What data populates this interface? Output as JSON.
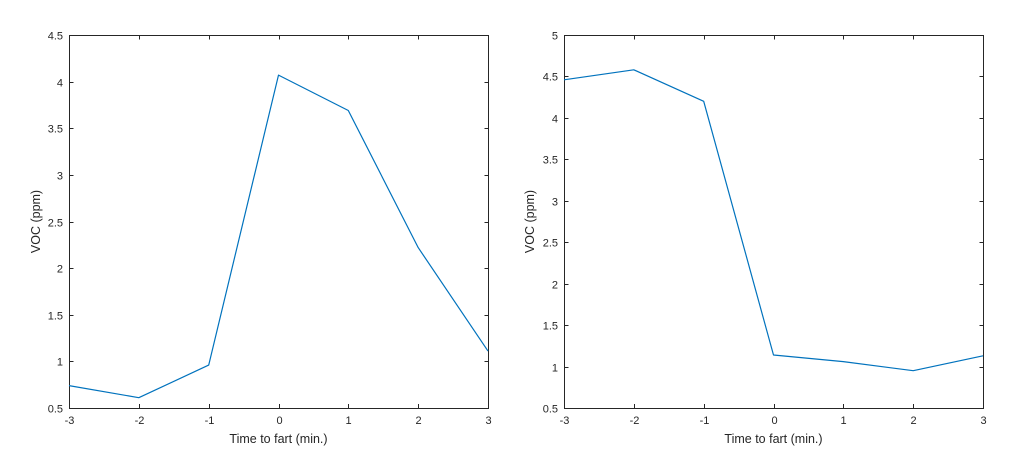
{
  "chart_data": [
    {
      "type": "line",
      "title": "",
      "xlabel": "Time to fart (min.)",
      "ylabel": "VOC (ppm)",
      "xlim": [
        -3,
        3
      ],
      "ylim": [
        0.5,
        4.5
      ],
      "xticks": [
        -3,
        -2,
        -1,
        0,
        1,
        2,
        3
      ],
      "yticks": [
        0.5,
        1,
        1.5,
        2,
        2.5,
        3,
        3.5,
        4,
        4.5
      ],
      "xtick_labels": [
        "-3",
        "-2",
        "-1",
        "0",
        "1",
        "2",
        "3"
      ],
      "ytick_labels": [
        "0.5",
        "1",
        "1.5",
        "2",
        "2.5",
        "3",
        "3.5",
        "4",
        "4.5"
      ],
      "grid": false,
      "color": "#0072BD",
      "x": [
        -3,
        -2,
        -1,
        0,
        1,
        2,
        3
      ],
      "y": [
        0.74,
        0.61,
        0.96,
        4.07,
        3.69,
        2.22,
        1.11
      ]
    },
    {
      "type": "line",
      "title": "",
      "xlabel": "Time to fart (min.)",
      "ylabel": "VOC (ppm)",
      "xlim": [
        -3,
        3
      ],
      "ylim": [
        0.5,
        5
      ],
      "xticks": [
        -3,
        -2,
        -1,
        0,
        1,
        2,
        3
      ],
      "yticks": [
        0.5,
        1,
        1.5,
        2,
        2.5,
        3,
        3.5,
        4,
        4.5,
        5
      ],
      "xtick_labels": [
        "-3",
        "-2",
        "-1",
        "0",
        "1",
        "2",
        "3"
      ],
      "ytick_labels": [
        "0.5",
        "1",
        "1.5",
        "2",
        "2.5",
        "3",
        "3.5",
        "4",
        "4.5",
        "5"
      ],
      "grid": false,
      "color": "#0072BD",
      "x": [
        -3,
        -2,
        -1,
        0,
        1,
        2,
        3
      ],
      "y": [
        4.46,
        4.58,
        4.2,
        1.14,
        1.06,
        0.95,
        1.13
      ]
    }
  ]
}
